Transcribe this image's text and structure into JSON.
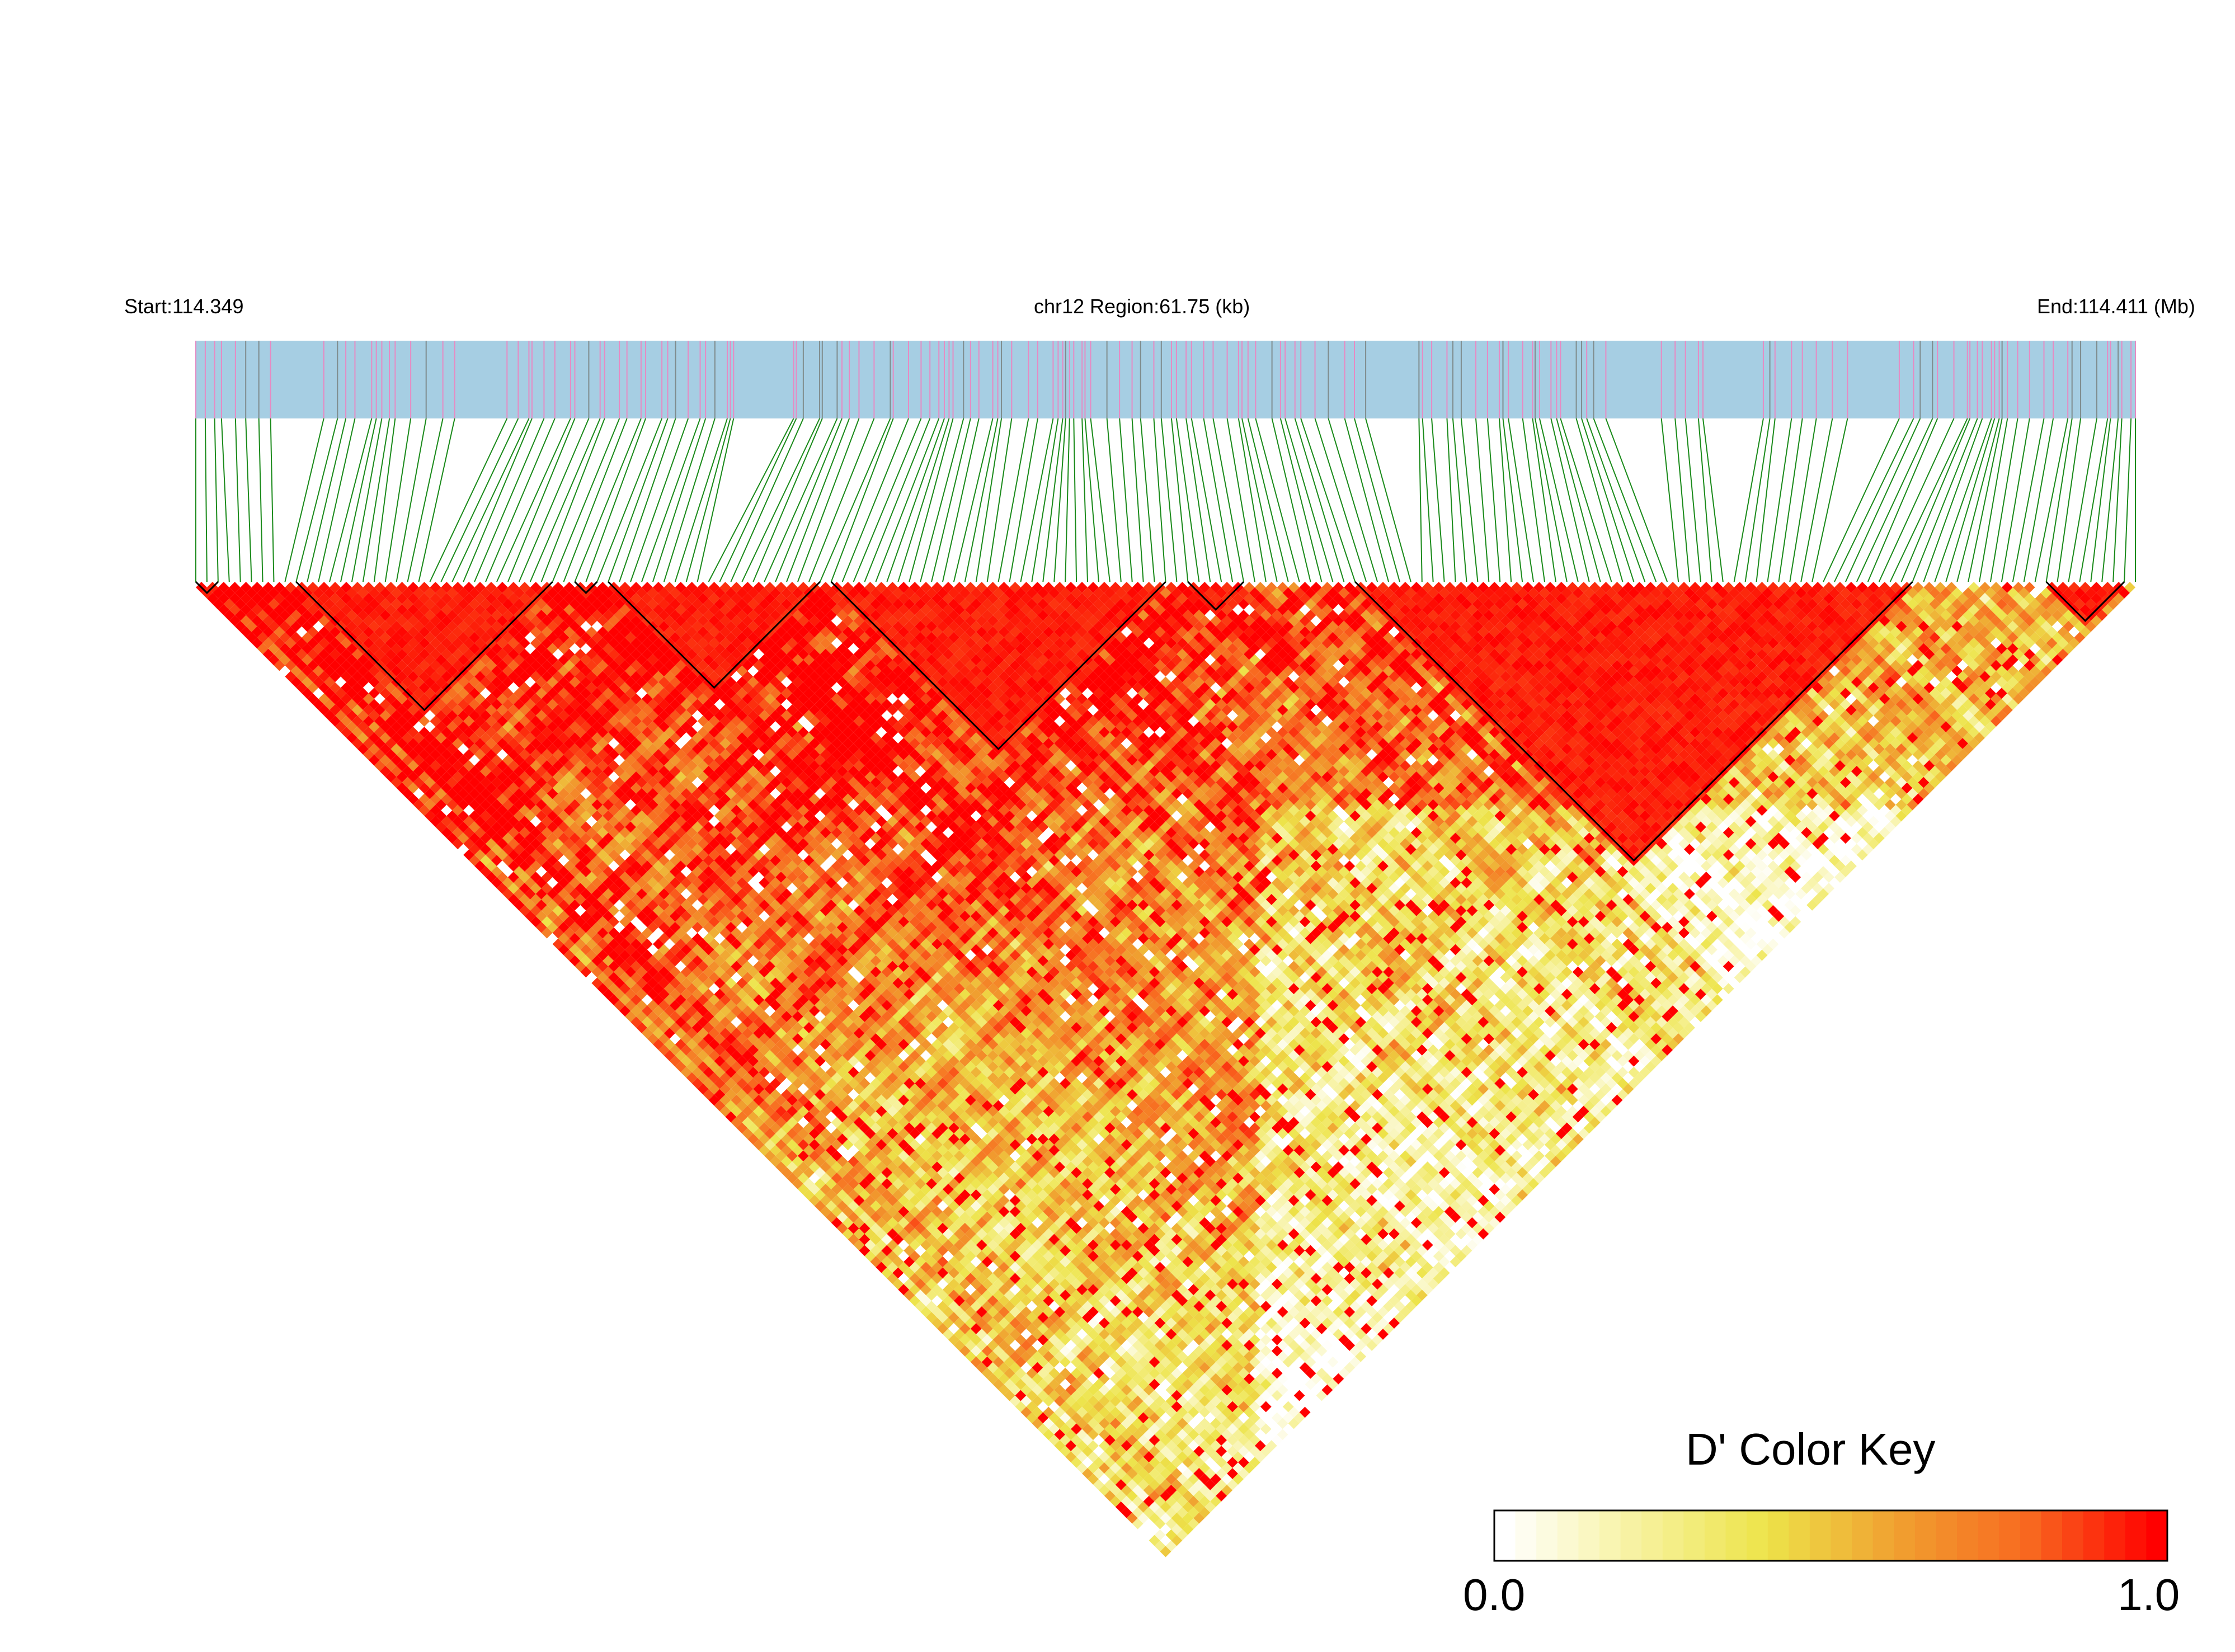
{
  "chart_data": {
    "type": "heatmap",
    "subtype": "ld-triangle",
    "header": {
      "start_label": "Start:114.349",
      "region_label": "chr12 Region:61.75 (kb)",
      "end_label": "End:114.411 (Mb)"
    },
    "chromosome": "chr12",
    "region_start_mb": 114.349,
    "region_end_mb": 114.411,
    "region_length_kb": 61.75,
    "snp_count": 175,
    "metric": "D'",
    "color_key": {
      "title": "D' Color Key",
      "min_label": "0.0",
      "max_label": "1.0",
      "range": [
        0.0,
        1.0
      ],
      "stops": [
        "#ffffff",
        "#f7f2a0",
        "#ede44a",
        "#f0a030",
        "#f86a20",
        "#ff0000"
      ]
    },
    "ld_blocks": [
      {
        "from_snp": 0,
        "to_snp": 2
      },
      {
        "from_snp": 9,
        "to_snp": 32
      },
      {
        "from_snp": 34,
        "to_snp": 36
      },
      {
        "from_snp": 37,
        "to_snp": 56
      },
      {
        "from_snp": 57,
        "to_snp": 87
      },
      {
        "from_snp": 89,
        "to_snp": 94
      },
      {
        "from_snp": 104,
        "to_snp": 154
      },
      {
        "from_snp": 166,
        "to_snp": 173
      }
    ],
    "colors": {
      "track_fill": "#a6cee3",
      "marker_pink": "#e78ac3",
      "marker_gray": "#7f8c8d",
      "connector": "#1a8a1a",
      "block_outline": "#000000"
    }
  }
}
